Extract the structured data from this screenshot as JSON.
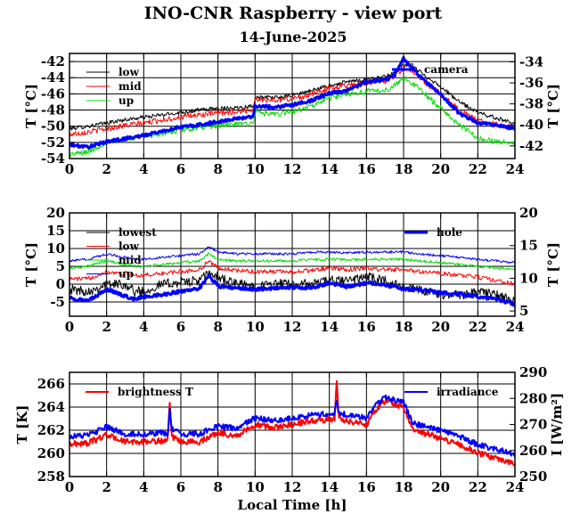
{
  "figure": {
    "title": "INO-CNR Raspberry - view port",
    "date": "14-June-2025",
    "xlabel": "Local Time [h]"
  },
  "chart_data": [
    {
      "type": "line",
      "xlim": [
        0,
        24
      ],
      "xticks": [
        0,
        2,
        4,
        6,
        8,
        10,
        12,
        14,
        16,
        18,
        20,
        22,
        24
      ],
      "ylim": [
        -54,
        -41
      ],
      "yticks": [
        -54,
        -52,
        -50,
        -48,
        -46,
        -44,
        -42
      ],
      "ylabel": "T [°C]",
      "y2lim": [
        -43.2,
        -33.2
      ],
      "y2ticks": [
        -42,
        -40,
        -38,
        -36,
        -34
      ],
      "y2label": "T [°C]",
      "grid": true,
      "legend": "top-left",
      "legend_right": "top-right",
      "series": [
        {
          "name": "low",
          "color": "#000000",
          "axis": "left",
          "width": 1,
          "noise": 0.25,
          "x": [
            0,
            1,
            2,
            3,
            4,
            5,
            6,
            7,
            8,
            9,
            9.9,
            10,
            11,
            12,
            13,
            14,
            15,
            16,
            17,
            17.5,
            18,
            18.5,
            19,
            20,
            21,
            22,
            23,
            24
          ],
          "y": [
            -50.3,
            -50,
            -49.6,
            -49.2,
            -48.9,
            -48.6,
            -48.3,
            -48,
            -47.8,
            -47.7,
            -47.5,
            -46.4,
            -46.5,
            -46.2,
            -45.6,
            -45,
            -44.5,
            -44.2,
            -43.9,
            -43.4,
            -42.5,
            -42.5,
            -43.5,
            -45.1,
            -47,
            -48.3,
            -49,
            -49.6
          ]
        },
        {
          "name": "mid",
          "color": "#ff0000",
          "axis": "left",
          "width": 1,
          "noise": 0.35,
          "x": [
            0,
            1,
            2,
            3,
            4,
            5,
            6,
            7,
            8,
            9,
            9.9,
            10,
            11,
            12,
            13,
            14,
            15,
            16,
            17,
            17.5,
            18,
            18.5,
            19,
            20,
            21,
            22,
            23,
            24
          ],
          "y": [
            -51,
            -50.7,
            -50.3,
            -49.9,
            -49.6,
            -49.2,
            -48.9,
            -48.6,
            -48.4,
            -48.2,
            -48,
            -46.6,
            -46.8,
            -46.6,
            -46.1,
            -45.3,
            -44.9,
            -44.6,
            -44.4,
            -43.8,
            -42.8,
            -43.2,
            -44.3,
            -46,
            -48,
            -49.3,
            -49.8,
            -50.2
          ]
        },
        {
          "name": "up",
          "color": "#00dd00",
          "axis": "left",
          "width": 1,
          "noise": 0.35,
          "x": [
            0,
            1,
            2,
            3,
            4,
            5,
            6,
            7,
            8,
            9,
            9.9,
            10,
            11,
            12,
            13,
            14,
            15,
            16,
            17,
            17.5,
            18,
            18.5,
            19,
            20,
            21,
            22,
            23,
            24
          ],
          "y": [
            -53.5,
            -53.2,
            -52,
            -51.6,
            -51.2,
            -50.9,
            -50.5,
            -50.2,
            -49.9,
            -49.8,
            -49.6,
            -48.2,
            -48.6,
            -48.2,
            -47.6,
            -46.5,
            -46,
            -45.7,
            -45.6,
            -45,
            -44,
            -44.7,
            -45.7,
            -47.8,
            -49.8,
            -51.5,
            -51.9,
            -52.1
          ]
        },
        {
          "name": "camera",
          "color": "#0000ff",
          "axis": "right",
          "width": 3,
          "noise": 0.15,
          "x": [
            0,
            1,
            2,
            3,
            4,
            5,
            6,
            7,
            8,
            9,
            9.9,
            10,
            11,
            12,
            13,
            14,
            15,
            16,
            17,
            17.5,
            18,
            18.5,
            19,
            20,
            21,
            22,
            23,
            24
          ],
          "y": [
            -41.9,
            -42.1,
            -41.6,
            -41.3,
            -41,
            -40.6,
            -40.2,
            -40,
            -39.7,
            -39.4,
            -39.2,
            -38.2,
            -38.3,
            -38.1,
            -37.7,
            -37,
            -36.7,
            -35.9,
            -35.7,
            -35.3,
            -33.7,
            -34.6,
            -35.6,
            -37.1,
            -38.9,
            -39.8,
            -40,
            -40.4
          ]
        }
      ]
    },
    {
      "type": "line",
      "xlim": [
        0,
        24
      ],
      "xticks": [
        0,
        2,
        4,
        6,
        8,
        10,
        12,
        14,
        16,
        18,
        20,
        22,
        24
      ],
      "ylim": [
        -9,
        20
      ],
      "yticks": [
        -5,
        0,
        5,
        10,
        15,
        20
      ],
      "ylabel": "T [°C]",
      "y2lim": [
        4.2,
        20
      ],
      "y2ticks": [
        5,
        10,
        15,
        20
      ],
      "y2label": "T [°C]",
      "grid": true,
      "legend": "top-left",
      "legend_right": "top-right",
      "series": [
        {
          "name": "lowest",
          "color": "#000000",
          "axis": "left",
          "width": 1,
          "noise": 1.4,
          "x": [
            0,
            1,
            2,
            3,
            3.5,
            4,
            5,
            6,
            7,
            7.5,
            8,
            9,
            10,
            11,
            12,
            13,
            14,
            15,
            16,
            17,
            18,
            19,
            20,
            21,
            22,
            23,
            24
          ],
          "y": [
            -1.5,
            -2,
            0,
            0,
            -2,
            -2,
            0,
            0.5,
            1,
            3,
            2,
            0,
            -0.5,
            0,
            0,
            0,
            1,
            1,
            2,
            1,
            -1,
            -2,
            -3,
            -3,
            -2,
            -3,
            -5
          ]
        },
        {
          "name": "low",
          "color": "#ff0000",
          "axis": "left",
          "width": 1,
          "noise": 0.6,
          "x": [
            0,
            1,
            2,
            3,
            3.5,
            4,
            5,
            6,
            7,
            7.5,
            8,
            9,
            10,
            11,
            12,
            13,
            14,
            15,
            16,
            17,
            18,
            19,
            20,
            21,
            22,
            23,
            24
          ],
          "y": [
            1.5,
            1.5,
            3.5,
            3,
            2.5,
            2.5,
            3,
            3.5,
            4,
            6.5,
            4.5,
            3.8,
            3.5,
            3.5,
            3.5,
            3.8,
            4.5,
            4,
            4.5,
            4,
            4,
            3.5,
            3,
            2.5,
            2,
            1,
            0
          ]
        },
        {
          "name": "mid",
          "color": "#00dd00",
          "axis": "left",
          "width": 1,
          "noise": 0.4,
          "x": [
            0,
            1,
            2,
            3,
            3.5,
            4,
            5,
            6,
            7,
            7.5,
            8,
            9,
            10,
            11,
            12,
            13,
            14,
            15,
            16,
            17,
            18,
            19,
            20,
            21,
            22,
            23,
            24
          ],
          "y": [
            4.5,
            5,
            6.5,
            5.5,
            5,
            5,
            5.5,
            6,
            6.5,
            8.5,
            7,
            6.5,
            6.5,
            6.5,
            6.5,
            6.8,
            7,
            6.8,
            7,
            7,
            7,
            6.5,
            6,
            5.5,
            5,
            4.5,
            4
          ]
        },
        {
          "name": "up",
          "color": "#0000ff",
          "axis": "left",
          "width": 1,
          "noise": 0.35,
          "x": [
            0,
            1,
            2,
            3,
            3.5,
            4,
            5,
            6,
            7,
            7.5,
            8,
            9,
            10,
            11,
            12,
            13,
            14,
            15,
            16,
            17,
            18,
            19,
            20,
            21,
            22,
            23,
            24
          ],
          "y": [
            6.5,
            7,
            8.5,
            7.5,
            7,
            7,
            7.5,
            8,
            8.5,
            10.5,
            9,
            8.5,
            8.5,
            8.5,
            8.5,
            9,
            9,
            8.8,
            9,
            9,
            9,
            8.5,
            8,
            7.5,
            7,
            6.5,
            6
          ]
        },
        {
          "name": "hole",
          "color": "#0000ff",
          "axis": "right",
          "width": 3,
          "noise": 0.25,
          "x": [
            0,
            1,
            2,
            3,
            3.5,
            4,
            5,
            6,
            7,
            7.5,
            8,
            9,
            10,
            11,
            12,
            13,
            14,
            15,
            16,
            17,
            18,
            19,
            20,
            21,
            22,
            23,
            24
          ],
          "y": [
            7,
            6.5,
            8.3,
            7.3,
            6.8,
            7.2,
            7.5,
            8,
            8.5,
            10.3,
            8.8,
            8.5,
            8.3,
            8.5,
            8.6,
            8.5,
            9.3,
            8.7,
            9.3,
            9,
            8.4,
            8.2,
            7.8,
            7.6,
            7.2,
            6.8,
            6
          ]
        }
      ]
    },
    {
      "type": "line",
      "xlim": [
        0,
        24
      ],
      "xticks": [
        0,
        2,
        4,
        6,
        8,
        10,
        12,
        14,
        16,
        18,
        20,
        22,
        24
      ],
      "ylim": [
        258,
        267
      ],
      "yticks": [
        258,
        260,
        262,
        264,
        266
      ],
      "ylabel": "T [K]",
      "y2lim": [
        250,
        290
      ],
      "y2ticks": [
        250,
        260,
        270,
        280,
        290
      ],
      "y2label": "I [W/m²]",
      "grid": true,
      "legend": "top-left",
      "legend_right": "top-right",
      "series": [
        {
          "name": "brightness T",
          "color": "#ff0000",
          "axis": "left",
          "width": 2,
          "noise": 0.25,
          "x": [
            0,
            1,
            2,
            3,
            4,
            5,
            5.3,
            5.4,
            5.5,
            6,
            7,
            8,
            9,
            10,
            11,
            12,
            13,
            14,
            14.3,
            14.4,
            14.5,
            15,
            16,
            16.5,
            17,
            17.5,
            18,
            18.5,
            19,
            20,
            21,
            22,
            23,
            24
          ],
          "y": [
            260.8,
            260.9,
            261.6,
            261,
            261,
            261.1,
            261,
            264.5,
            261.4,
            261,
            261,
            261.8,
            261.5,
            262.5,
            262.2,
            262.5,
            262.8,
            262.9,
            263,
            266.5,
            263,
            262.8,
            262.5,
            263.8,
            264.5,
            264.3,
            264,
            262,
            261.8,
            261.3,
            260.8,
            260,
            259.6,
            259.1
          ]
        },
        {
          "name": "irradiance",
          "color": "#0000ff",
          "axis": "right",
          "width": 2,
          "noise": 1.1,
          "x": [
            0,
            1,
            2,
            3,
            4,
            5,
            5.3,
            5.4,
            5.5,
            6,
            7,
            8,
            9,
            10,
            11,
            12,
            13,
            14,
            14.3,
            14.4,
            14.5,
            15,
            16,
            16.5,
            17,
            17.5,
            18,
            18.5,
            19,
            20,
            21,
            22,
            23,
            24
          ],
          "y": [
            265.5,
            265.8,
            269,
            266.3,
            266.3,
            266.7,
            266.3,
            276,
            268.3,
            266.3,
            266.3,
            269.5,
            268.3,
            272.5,
            271.3,
            272.5,
            273.5,
            274,
            274.5,
            280,
            274.5,
            273.5,
            272.5,
            277.5,
            280.5,
            279.5,
            278.5,
            270.5,
            269.5,
            267.5,
            265.5,
            262.2,
            260.5,
            258.5
          ]
        }
      ]
    }
  ]
}
